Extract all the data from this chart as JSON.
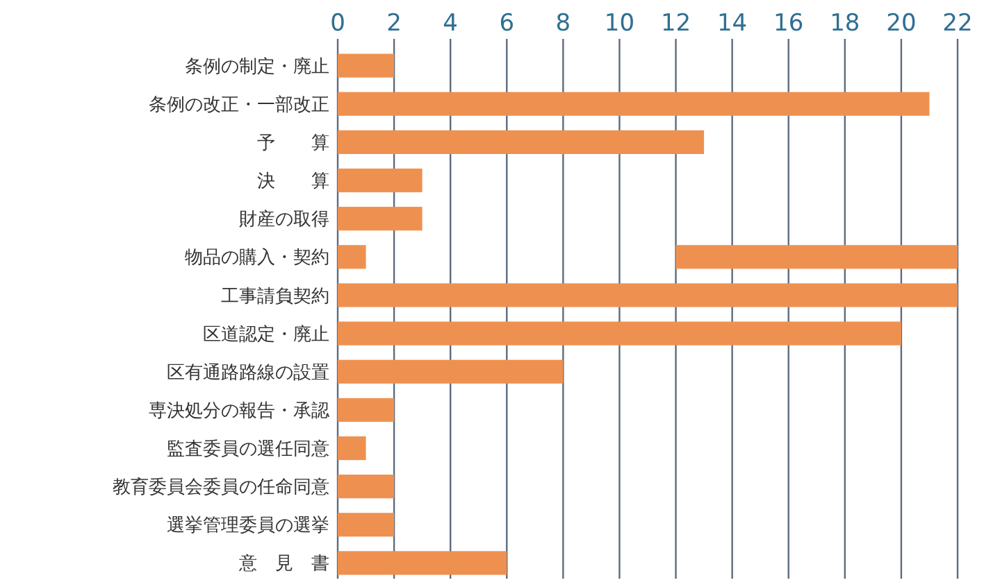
{
  "chart_data": {
    "type": "bar",
    "orientation": "horizontal",
    "categories": [
      "条例の制定・廃止",
      "条例の改正・一部改正",
      "予　　算",
      "決　　算",
      "財産の取得",
      "物品の購入・契約",
      "工事請負契約",
      "区道認定・廃止",
      "区有通路路線の設置",
      "専決処分の報告・承認",
      "監査委員の選任同意",
      "教育委員会委員の任命同意",
      "選挙管理委員の選挙",
      "意　見　書"
    ],
    "series": [
      {
        "color": "#ee9150",
        "values": [
          2,
          21,
          13,
          3,
          3,
          1,
          22,
          20,
          8,
          2,
          1,
          2,
          2,
          6
        ]
      },
      {
        "color": "#ee9150",
        "values": [
          null,
          null,
          null,
          null,
          null,
          10,
          null,
          null,
          null,
          null,
          null,
          null,
          null,
          null
        ],
        "base": [
          null,
          null,
          null,
          null,
          null,
          12,
          null,
          null,
          null,
          null,
          null,
          null,
          null,
          null
        ]
      }
    ],
    "xlim": [
      0,
      22
    ],
    "xticks": [
      0,
      2,
      4,
      6,
      8,
      10,
      12,
      14,
      16,
      18,
      20,
      22
    ],
    "grid": "x"
  }
}
